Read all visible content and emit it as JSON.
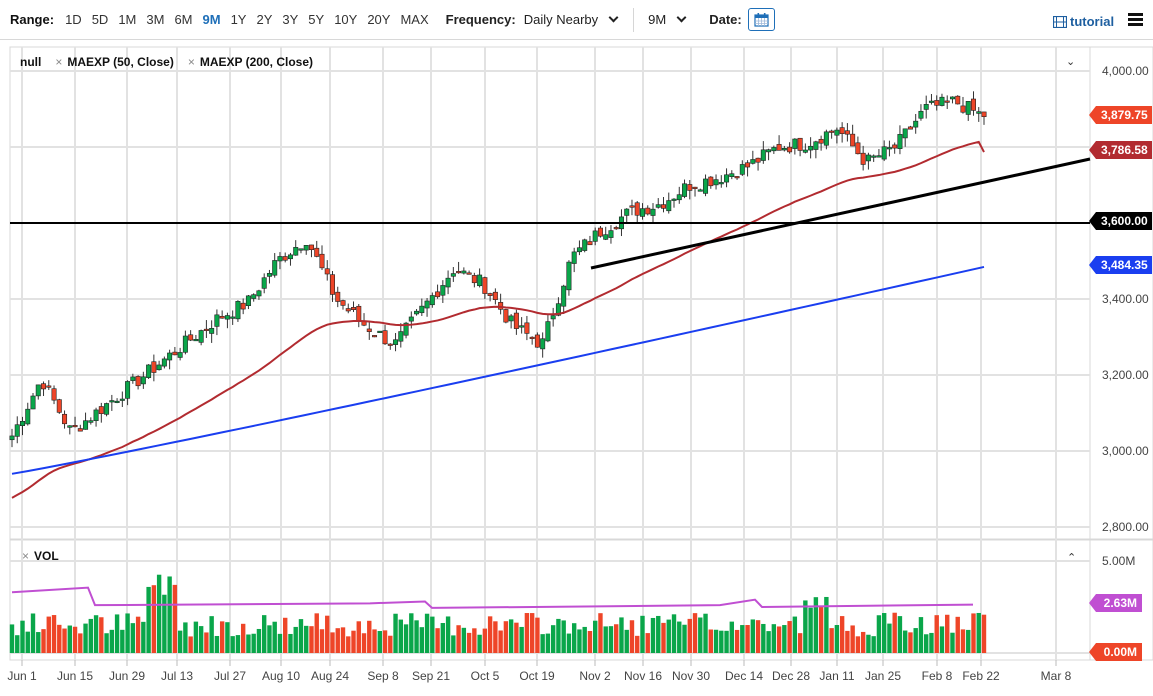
{
  "toolbar": {
    "range_label": "Range:",
    "ranges": [
      "1D",
      "5D",
      "1M",
      "3M",
      "6M",
      "9M",
      "1Y",
      "2Y",
      "3Y",
      "5Y",
      "10Y",
      "20Y",
      "MAX"
    ],
    "active_range": "9M",
    "frequency_label": "Frequency:",
    "frequency_value": "Daily Nearby",
    "period_value": "9M",
    "date_label": "Date:",
    "tutorial_label": "tutorial"
  },
  "legend": {
    "items": [
      "null",
      "MAEXP (50, Close)",
      "MAEXP (200, Close)"
    ],
    "volume": "VOL"
  },
  "colors": {
    "up": "#0aa64a",
    "down": "#ee4528",
    "ma50": "#b22b30",
    "ma200": "#1a3ef0",
    "vol_ma": "#c04fd2",
    "trendline": "#000000",
    "accent": "#1e6fb8"
  },
  "chart_data": [
    {
      "type": "candlestick",
      "title": "",
      "price_axis": {
        "ticks": [
          "4,000.00",
          "3,800.00",
          "3,600.00",
          "3,400.00",
          "3,200.00",
          "3,000.00",
          "2,800.00"
        ],
        "tick_values": [
          4000,
          3800,
          3600,
          3400,
          3200,
          3000,
          2800
        ],
        "ylim": [
          2770,
          4030
        ]
      },
      "x_axis": {
        "ticks": [
          "Jun 1",
          "Jun 15",
          "Jun 29",
          "Jul 13",
          "Jul 27",
          "Aug 10",
          "Aug 24",
          "Sep 8",
          "Sep 21",
          "Oct 5",
          "Oct 19",
          "Nov 2",
          "Nov 16",
          "Nov 30",
          "Dec 14",
          "Dec 28",
          "Jan 11",
          "Jan 25",
          "Feb 8",
          "Feb 22",
          "Mar 8"
        ]
      },
      "value_tags": [
        {
          "label": "3,879.75",
          "value": 3879.75,
          "series": "last price",
          "color": "#ee4528"
        },
        {
          "label": "3,786.58",
          "value": 3786.58,
          "series": "MAEXP (50, Close)",
          "color": "#b22b30"
        },
        {
          "label": "3,600.00",
          "value": 3600.0,
          "series": "horizontal line",
          "color": "#000000"
        },
        {
          "label": "3,484.35",
          "value": 3484.35,
          "series": "MAEXP (200, Close)",
          "color": "#1a3ef0"
        }
      ],
      "annotations": [
        {
          "type": "horizontal_line",
          "value": 3600
        },
        {
          "type": "trendline",
          "from": {
            "date": "Oct 30",
            "value": 3475
          },
          "to": {
            "date": "Mar 1",
            "value": 3760
          }
        }
      ],
      "series": [
        {
          "name": "close",
          "approx_weekly": [
            3040,
            3190,
            3050,
            3110,
            3170,
            3230,
            3290,
            3350,
            3390,
            3500,
            3560,
            3400,
            3330,
            3280,
            3380,
            3480,
            3440,
            3330,
            3280,
            3510,
            3580,
            3630,
            3650,
            3700,
            3720,
            3750,
            3800,
            3810,
            3850,
            3760,
            3800,
            3900,
            3920,
            3879.75
          ]
        },
        {
          "name": "MAEXP (50, Close)",
          "start": 2870,
          "end": 3786.58
        },
        {
          "name": "MAEXP (200, Close)",
          "start": 2940,
          "end": 3484.35
        }
      ]
    },
    {
      "type": "bar",
      "title": "VOL",
      "y_axis": {
        "ticks": [
          "5.00M",
          "0.00M"
        ],
        "ylim": [
          0,
          5.0
        ]
      },
      "value_tags": [
        {
          "label": "2.63M",
          "value": 2.63,
          "series": "volume MA",
          "color": "#c04fd2"
        },
        {
          "label": "0.00M",
          "value": 0.0,
          "series": "volume",
          "color": "#ee4528"
        }
      ],
      "volume_ma_level": 2.63
    }
  ]
}
